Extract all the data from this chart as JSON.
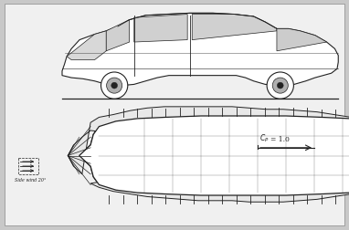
{
  "background_color": "#c8c8c8",
  "line_color": "#222222",
  "fill_color": "#f5f5f5",
  "white_fill": "#ffffff",
  "gray_fill": "#b0b0b0",
  "figsize": [
    3.82,
    2.53
  ],
  "dpi": 100,
  "cp_text": "C",
  "cp_sub": "P",
  "cp_eq": "= 1.0",
  "arrow_label": "Side wind 20°"
}
